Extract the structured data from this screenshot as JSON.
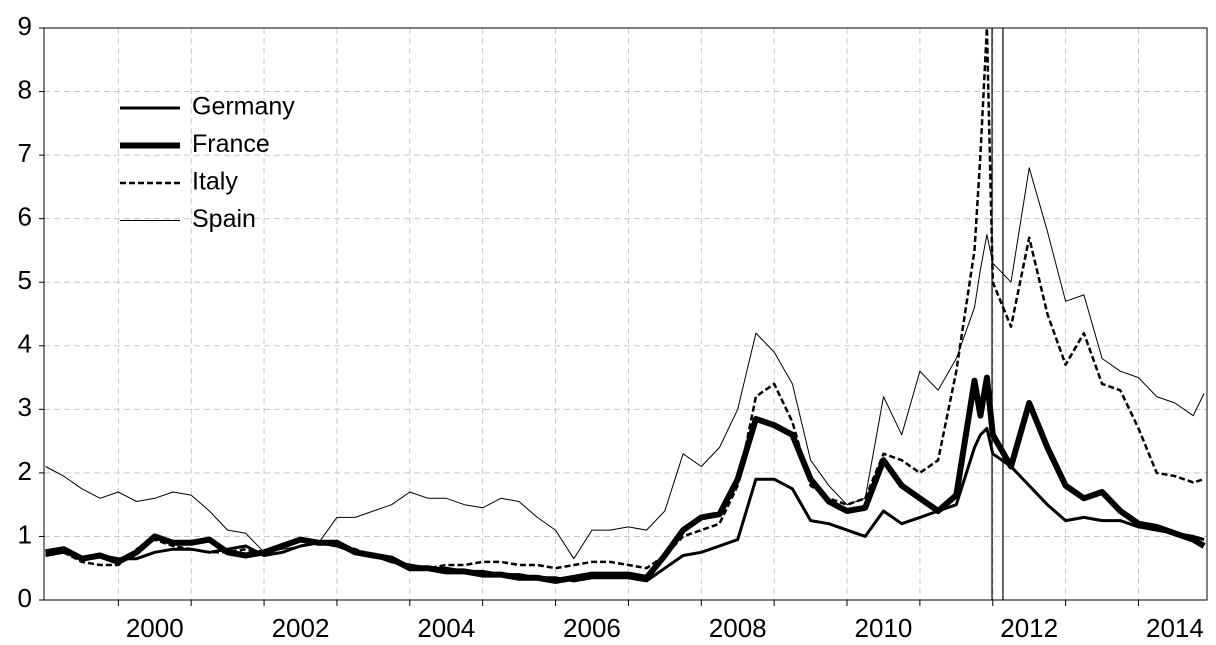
{
  "chart_data": {
    "type": "line",
    "x": [
      1999,
      1999.25,
      1999.5,
      1999.75,
      2000,
      2000.25,
      2000.5,
      2000.75,
      2001,
      2001.25,
      2001.5,
      2001.75,
      2002,
      2002.25,
      2002.5,
      2002.75,
      2003,
      2003.25,
      2003.5,
      2003.75,
      2004,
      2004.25,
      2004.5,
      2004.75,
      2005,
      2005.25,
      2005.5,
      2005.75,
      2006,
      2006.25,
      2006.5,
      2006.75,
      2007,
      2007.25,
      2007.5,
      2007.75,
      2008,
      2008.25,
      2008.5,
      2008.75,
      2009,
      2009.25,
      2009.5,
      2009.75,
      2010,
      2010.25,
      2010.5,
      2010.75,
      2011,
      2011.25,
      2011.5,
      2011.75,
      2011.83,
      2011.92,
      2012,
      2012.25,
      2012.5,
      2012.75,
      2013,
      2013.25,
      2013.5,
      2013.75,
      2014,
      2014.25,
      2014.5,
      2014.75,
      2014.9
    ],
    "series": [
      {
        "name": "Germany",
        "color": "#000000",
        "style": "medium",
        "values": [
          0.7,
          0.75,
          0.65,
          0.7,
          0.65,
          0.65,
          0.75,
          0.8,
          0.8,
          0.75,
          0.8,
          0.85,
          0.7,
          0.75,
          0.85,
          0.9,
          0.85,
          0.75,
          0.7,
          0.6,
          0.55,
          0.5,
          0.5,
          0.45,
          0.45,
          0.4,
          0.4,
          0.35,
          0.35,
          0.3,
          0.35,
          0.35,
          0.35,
          0.3,
          0.5,
          0.7,
          0.75,
          0.85,
          0.95,
          1.9,
          1.9,
          1.75,
          1.25,
          1.2,
          1.1,
          1.0,
          1.4,
          1.2,
          1.3,
          1.4,
          1.5,
          2.4,
          2.6,
          2.7,
          2.3,
          2.1,
          1.8,
          1.5,
          1.25,
          1.3,
          1.25,
          1.25,
          1.15,
          1.1,
          1.05,
          1.0,
          0.95
        ]
      },
      {
        "name": "France",
        "color": "#000000",
        "style": "thick",
        "values": [
          0.75,
          0.8,
          0.65,
          0.7,
          0.6,
          0.75,
          1.0,
          0.9,
          0.9,
          0.95,
          0.75,
          0.7,
          0.75,
          0.85,
          0.95,
          0.9,
          0.9,
          0.75,
          0.7,
          0.65,
          0.5,
          0.5,
          0.45,
          0.45,
          0.4,
          0.4,
          0.35,
          0.35,
          0.3,
          0.35,
          0.4,
          0.4,
          0.4,
          0.35,
          0.7,
          1.1,
          1.3,
          1.35,
          1.9,
          2.85,
          2.75,
          2.6,
          1.9,
          1.55,
          1.4,
          1.45,
          2.2,
          1.8,
          1.6,
          1.4,
          1.65,
          3.45,
          2.9,
          3.5,
          2.6,
          2.1,
          3.1,
          2.4,
          1.8,
          1.6,
          1.7,
          1.4,
          1.2,
          1.15,
          1.05,
          0.95,
          0.85
        ]
      },
      {
        "name": "Italy",
        "color": "#000000",
        "style": "dashed",
        "values": [
          0.75,
          0.75,
          0.6,
          0.55,
          0.55,
          0.8,
          0.95,
          0.85,
          0.8,
          0.75,
          0.75,
          0.8,
          0.7,
          0.75,
          0.85,
          0.9,
          0.9,
          0.8,
          0.7,
          0.6,
          0.5,
          0.5,
          0.55,
          0.55,
          0.6,
          0.6,
          0.55,
          0.55,
          0.5,
          0.55,
          0.6,
          0.6,
          0.55,
          0.5,
          0.7,
          1.0,
          1.1,
          1.2,
          1.8,
          3.2,
          3.4,
          2.8,
          1.8,
          1.6,
          1.5,
          1.6,
          2.3,
          2.2,
          2.0,
          2.2,
          3.6,
          5.5,
          7.0,
          9.0,
          5.0,
          4.3,
          5.7,
          4.5,
          3.7,
          4.2,
          3.4,
          3.3,
          2.7,
          2.0,
          1.95,
          1.85,
          1.9
        ]
      },
      {
        "name": "Spain",
        "color": "#000000",
        "style": "thin",
        "values": [
          2.1,
          1.95,
          1.75,
          1.6,
          1.7,
          1.55,
          1.6,
          1.7,
          1.65,
          1.4,
          1.1,
          1.05,
          0.75,
          0.8,
          0.85,
          0.9,
          1.3,
          1.3,
          1.4,
          1.5,
          1.7,
          1.6,
          1.6,
          1.5,
          1.45,
          1.6,
          1.55,
          1.3,
          1.1,
          0.65,
          1.1,
          1.1,
          1.15,
          1.1,
          1.4,
          2.3,
          2.1,
          2.4,
          3.0,
          4.2,
          3.9,
          3.4,
          2.2,
          1.8,
          1.5,
          1.6,
          3.2,
          2.6,
          3.6,
          3.3,
          3.8,
          4.6,
          5.2,
          5.75,
          5.3,
          5.0,
          6.8,
          5.8,
          4.7,
          4.8,
          3.8,
          3.6,
          3.5,
          3.2,
          3.1,
          2.9,
          3.25
        ]
      }
    ],
    "xlim": [
      1998.98,
      2014.94
    ],
    "xticks": [
      {
        "value": 2000.5,
        "label": "2000"
      },
      {
        "value": 2002.5,
        "label": "2002"
      },
      {
        "value": 2004.5,
        "label": "2004"
      },
      {
        "value": 2006.5,
        "label": "2006"
      },
      {
        "value": 2008.5,
        "label": "2008"
      },
      {
        "value": 2010.5,
        "label": "2010"
      },
      {
        "value": 2012.5,
        "label": "2012"
      },
      {
        "value": 2014.5,
        "label": "2014"
      }
    ],
    "xgrid": [
      2000,
      2001,
      2002,
      2003,
      2004,
      2005,
      2006,
      2007,
      2008,
      2009,
      2010,
      2011,
      2012,
      2013,
      2014
    ],
    "ylim": [
      0,
      9
    ],
    "yticks": [
      0,
      1,
      2,
      3,
      4,
      5,
      6,
      7,
      8,
      9
    ],
    "vlines": [
      2011.99,
      2012.14
    ],
    "grid": true,
    "legend": "upper-left"
  }
}
